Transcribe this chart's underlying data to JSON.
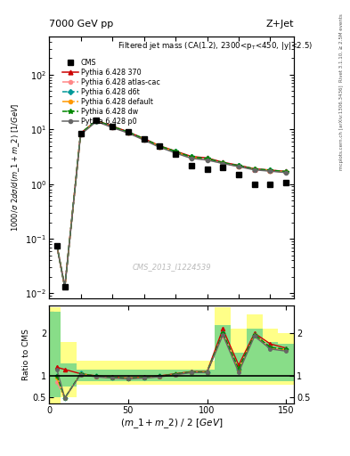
{
  "title_top": "7000 GeV pp",
  "title_right": "Z+Jet",
  "plot_title": "Filtered jet mass (CA(1.2), 2300<p_{T}<450, |y|<2.5)",
  "ylabel_main": "1000/σ 2dσ/d(m_1 + m_2) [1/GeV]",
  "ylabel_ratio": "Ratio to CMS",
  "xlabel": "(m_1 + m_2) / 2 [GeV]",
  "watermark": "CMS_2013_I1224539",
  "right_label": "mcplots.cern.ch [arXiv:1306.3436]",
  "rivet_label": "Rivet 3.1.10, ≥ 2.5M events",
  "x_cms": [
    5,
    10,
    20,
    30,
    40,
    50,
    60,
    70,
    80,
    90,
    100,
    110,
    120,
    130,
    140,
    150
  ],
  "y_cms": [
    0.075,
    0.013,
    8.5,
    14.5,
    11.5,
    9.0,
    6.8,
    5.0,
    3.5,
    2.2,
    1.9,
    2.0,
    1.5,
    1.0,
    1.0,
    1.05
  ],
  "x_lines": [
    5,
    10,
    20,
    30,
    40,
    50,
    60,
    70,
    80,
    90,
    100,
    110,
    120,
    130,
    140,
    150
  ],
  "y_370": [
    0.075,
    0.013,
    8.5,
    14.5,
    11.5,
    9.0,
    6.8,
    5.0,
    4.0,
    3.2,
    3.0,
    2.5,
    2.2,
    1.9,
    1.8,
    1.7
  ],
  "y_atl": [
    0.075,
    0.013,
    8.2,
    14.2,
    11.0,
    8.7,
    6.5,
    4.8,
    3.8,
    3.0,
    2.8,
    2.4,
    2.1,
    1.85,
    1.75,
    1.65
  ],
  "y_d6t": [
    0.075,
    0.013,
    8.4,
    14.4,
    11.2,
    8.9,
    6.7,
    4.9,
    3.9,
    3.1,
    2.9,
    2.45,
    2.15,
    1.88,
    1.78,
    1.68
  ],
  "y_def": [
    0.075,
    0.013,
    8.3,
    14.3,
    11.1,
    8.8,
    6.6,
    4.85,
    3.85,
    3.05,
    2.85,
    2.42,
    2.12,
    1.86,
    1.76,
    1.66
  ],
  "y_dw": [
    0.075,
    0.013,
    8.45,
    14.45,
    11.3,
    8.95,
    6.75,
    4.95,
    3.95,
    3.12,
    2.92,
    2.46,
    2.16,
    1.89,
    1.79,
    1.69
  ],
  "y_p0": [
    0.073,
    0.013,
    8.0,
    14.0,
    10.8,
    8.6,
    6.4,
    4.7,
    3.7,
    2.95,
    2.75,
    2.38,
    2.08,
    1.82,
    1.72,
    1.62
  ],
  "ratio_370": [
    1.2,
    1.15,
    1.05,
    1.0,
    0.97,
    0.95,
    0.97,
    1.0,
    1.05,
    1.1,
    1.1,
    2.1,
    1.25,
    2.0,
    1.75,
    1.65
  ],
  "ratio_atl": [
    0.85,
    0.48,
    1.04,
    0.98,
    0.95,
    0.93,
    0.95,
    0.98,
    1.03,
    1.08,
    1.08,
    1.95,
    1.1,
    1.95,
    1.65,
    1.6
  ],
  "ratio_d6t": [
    1.0,
    0.48,
    1.055,
    0.99,
    0.965,
    0.945,
    0.965,
    0.99,
    1.04,
    1.09,
    1.09,
    2.0,
    1.15,
    1.97,
    1.67,
    1.62
  ],
  "ratio_def": [
    0.95,
    0.48,
    1.048,
    0.985,
    0.958,
    0.938,
    0.958,
    0.985,
    1.035,
    1.085,
    1.085,
    1.98,
    1.13,
    1.96,
    1.66,
    1.61
  ],
  "ratio_dw": [
    1.0,
    0.48,
    1.052,
    0.99,
    0.962,
    0.942,
    0.962,
    0.99,
    1.04,
    1.09,
    1.09,
    2.01,
    1.16,
    1.97,
    1.67,
    1.62
  ],
  "ratio_p0": [
    1.15,
    0.48,
    1.03,
    0.975,
    0.948,
    0.928,
    0.948,
    0.975,
    1.025,
    1.075,
    1.075,
    1.96,
    1.08,
    1.93,
    1.63,
    1.58
  ],
  "x_band_edges": [
    0,
    7.5,
    12.5,
    17.5,
    25,
    35,
    45,
    55,
    65,
    75,
    85,
    95,
    105,
    115,
    125,
    135,
    145,
    155
  ],
  "green_lo": [
    0.5,
    0.75,
    0.75,
    0.88,
    0.88,
    0.88,
    0.88,
    0.88,
    0.88,
    0.88,
    0.88,
    0.88,
    0.88,
    0.88,
    0.88,
    0.88,
    0.88
  ],
  "green_hi": [
    2.5,
    1.3,
    1.3,
    1.15,
    1.15,
    1.15,
    1.15,
    1.15,
    1.15,
    1.15,
    1.15,
    1.15,
    2.2,
    1.55,
    2.1,
    1.8,
    1.75
  ],
  "yell_lo": [
    0.35,
    0.5,
    0.5,
    0.8,
    0.8,
    0.8,
    0.8,
    0.8,
    0.8,
    0.8,
    0.8,
    0.8,
    0.8,
    0.8,
    0.8,
    0.8,
    0.8
  ],
  "yell_hi": [
    2.6,
    1.8,
    1.8,
    1.35,
    1.35,
    1.35,
    1.35,
    1.35,
    1.35,
    1.35,
    1.35,
    1.35,
    2.6,
    2.1,
    2.45,
    2.1,
    2.0
  ],
  "color_370": "#cc0000",
  "color_atl": "#ff8888",
  "color_d6t": "#009999",
  "color_def": "#ff9900",
  "color_dw": "#008800",
  "color_p0": "#666666",
  "color_cms": "#000000",
  "xlim": [
    0,
    155
  ],
  "ylim_main": [
    0.008,
    500
  ],
  "ylim_ratio": [
    0.35,
    2.65
  ],
  "fig_width": 3.93,
  "fig_height": 5.12,
  "dpi": 100
}
